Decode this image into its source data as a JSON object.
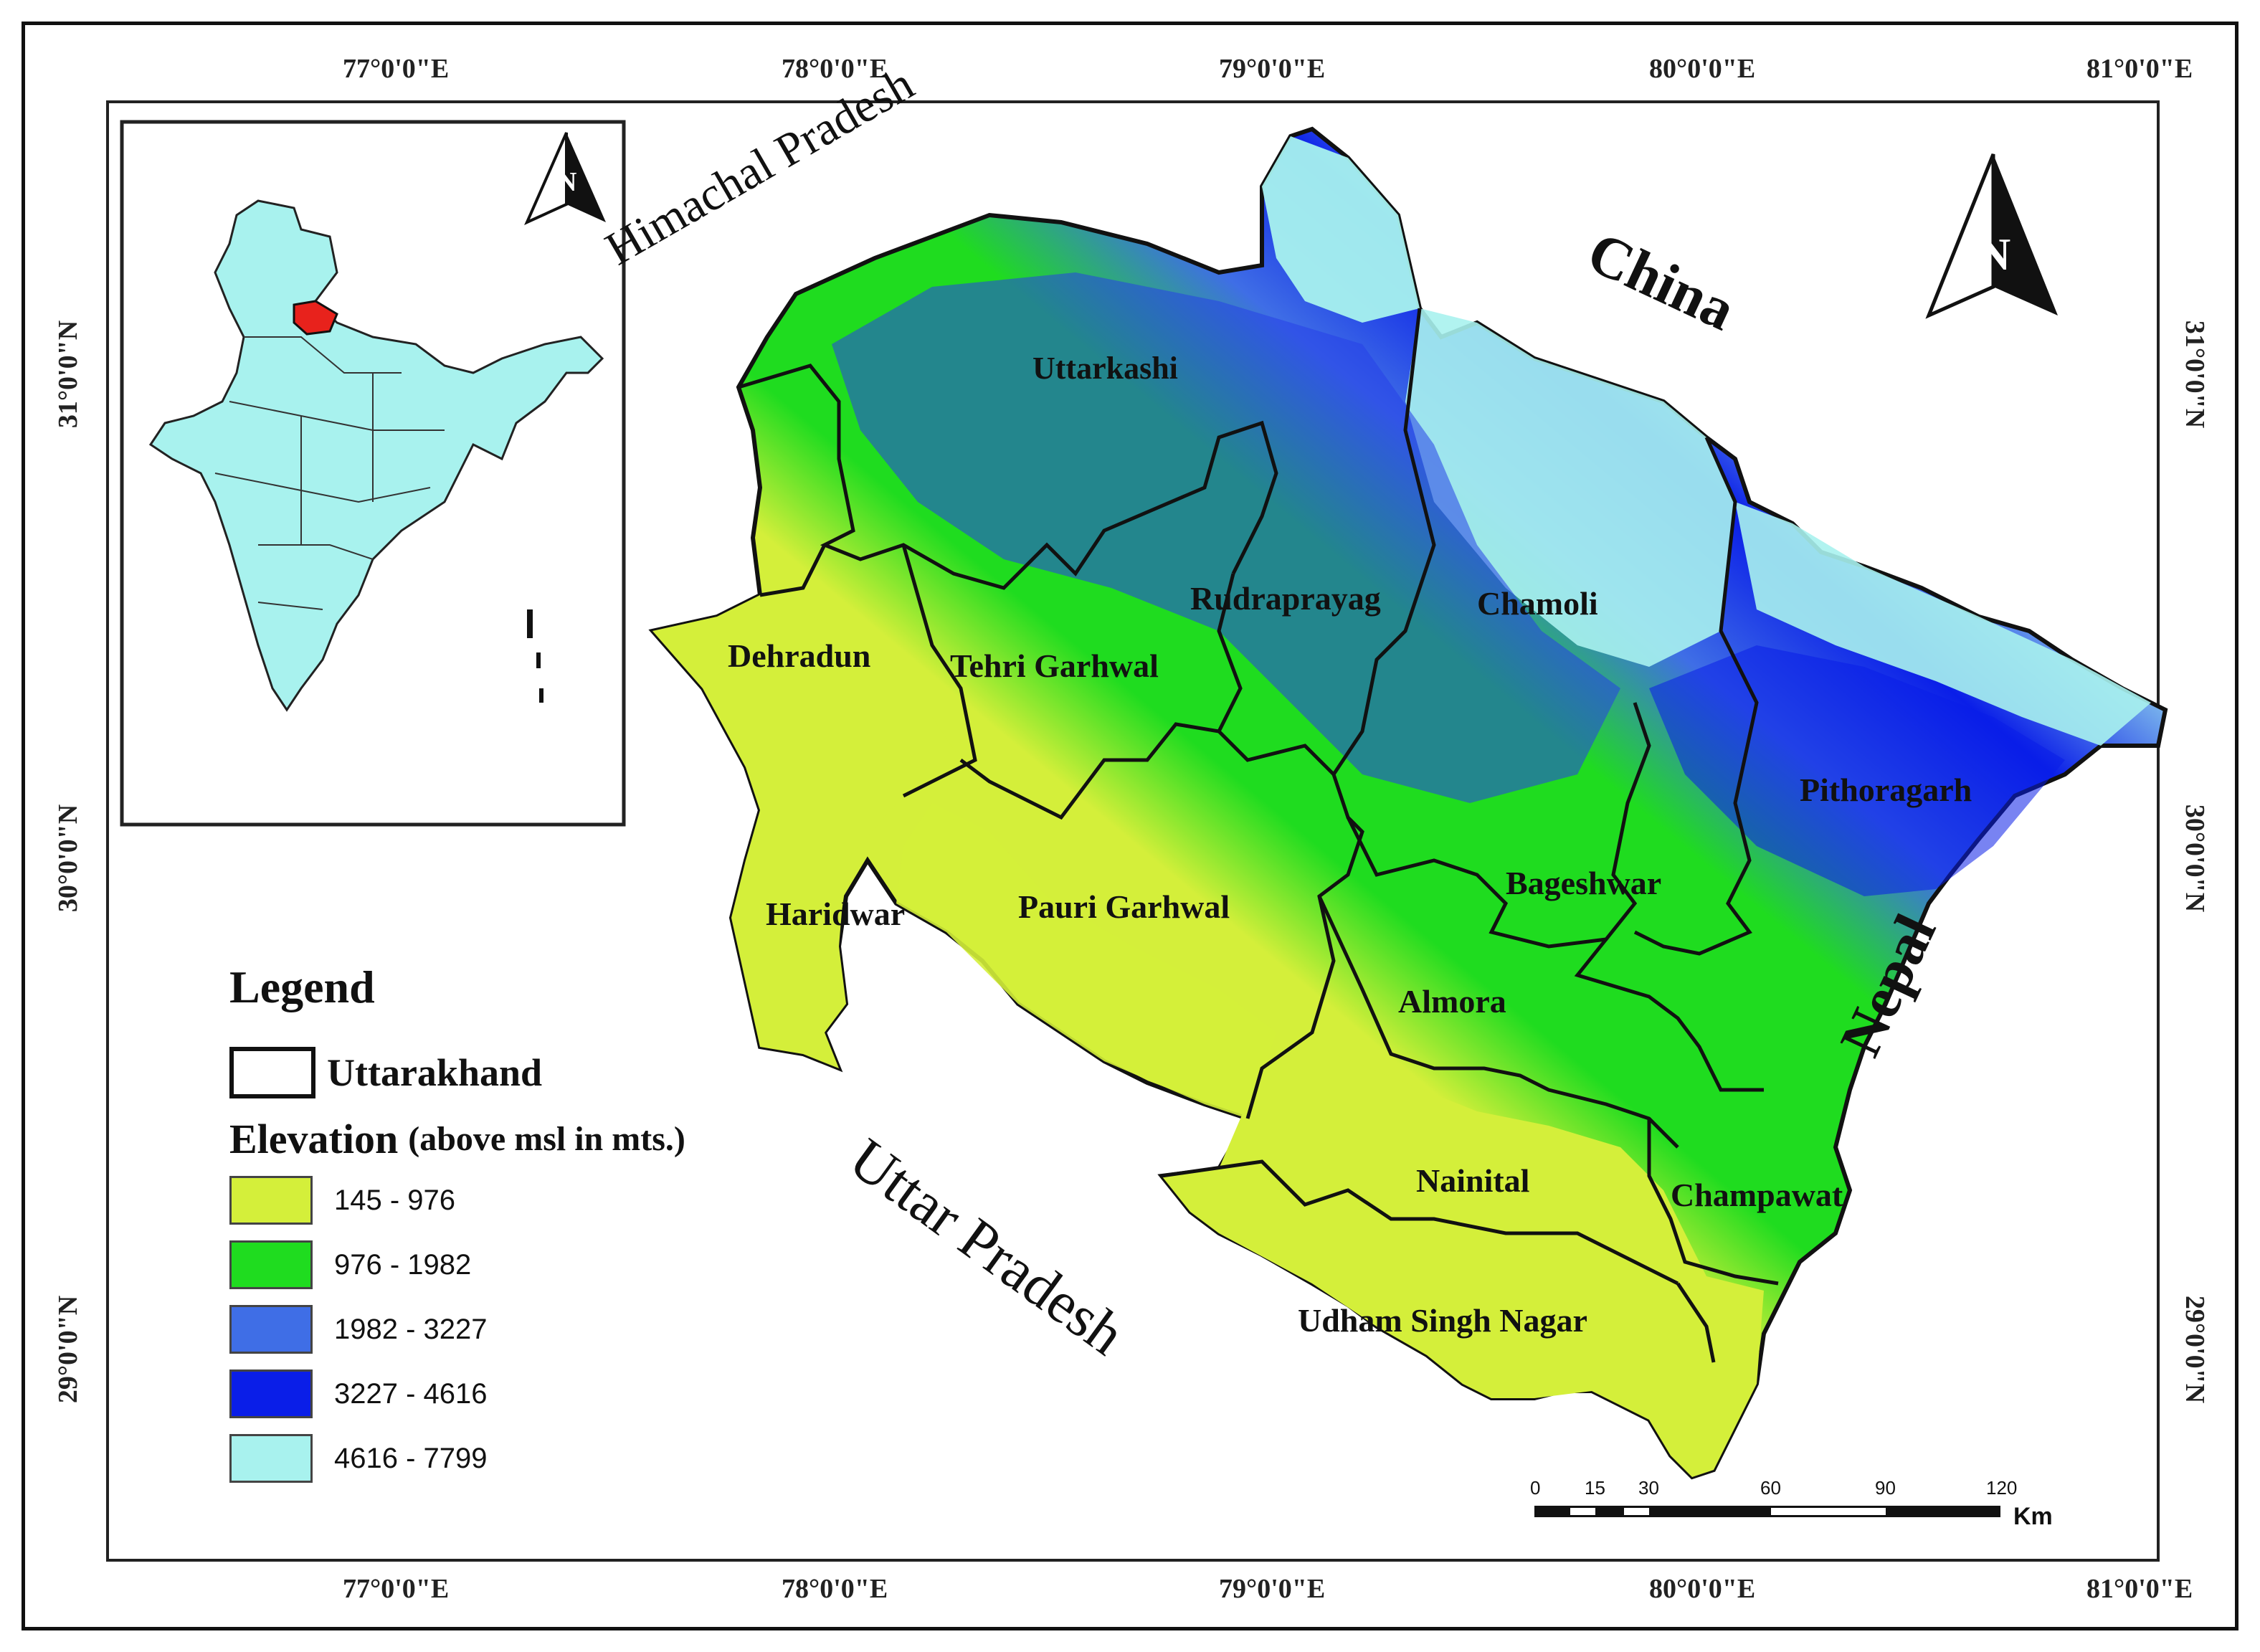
{
  "axes": {
    "top_longitudes": [
      "77°0'0\"E",
      "78°0'0\"E",
      "79°0'0\"E",
      "80°0'0\"E",
      "81°0'0\"E"
    ],
    "bottom_longitudes": [
      "77°0'0\"E",
      "78°0'0\"E",
      "79°0'0\"E",
      "80°0'0\"E",
      "81°0'0\"E"
    ],
    "left_latitudes": [
      "31°0'0\"N",
      "30°0'0\"N",
      "29°0'0\"N"
    ],
    "right_latitudes": [
      "31°0'0\"N",
      "30°0'0\"N",
      "29°0'0\"N"
    ]
  },
  "neighbors": {
    "north_west": "Himachal Pradesh",
    "north_east": "China",
    "east": "Nepal",
    "south_west": "Uttar Pradesh"
  },
  "districts": {
    "uttarkashi": "Uttarkashi",
    "chamoli": "Chamoli",
    "rudraprayag": "Rudraprayag",
    "dehradun": "Dehradun",
    "tehri": "Tehri Garhwal",
    "pithoragarh": "Pithoragarh",
    "bageshwar": "Bageshwar",
    "haridwar": "Haridwar",
    "pauri": "Pauri Garhwal",
    "almora": "Almora",
    "nainital": "Nainital",
    "champawat": "Champawat",
    "udham": "Udham Singh Nagar"
  },
  "north_arrow": {
    "letter": "N"
  },
  "legend": {
    "title": "Legend",
    "boundary_label": "Uttarakhand",
    "elevation_title": "Elevation",
    "elevation_unit": "(above msl in mts.)",
    "classes": [
      {
        "range": "145 - 976",
        "color": "#d4ef3a"
      },
      {
        "range": "976 - 1982",
        "color": "#1fdc1f"
      },
      {
        "range": "1982 - 3227",
        "color": "#3f6ee6"
      },
      {
        "range": "3227 - 4616",
        "color": "#0a1ee8"
      },
      {
        "range": "4616 - 7799",
        "color": "#a8f2ee"
      }
    ]
  },
  "scale_bar": {
    "ticks": [
      "0",
      "15",
      "30",
      "60",
      "90",
      "120"
    ],
    "unit": "Km"
  },
  "inset": {
    "country_color": "#a8f2ee",
    "highlight_color": "#e8221c"
  }
}
